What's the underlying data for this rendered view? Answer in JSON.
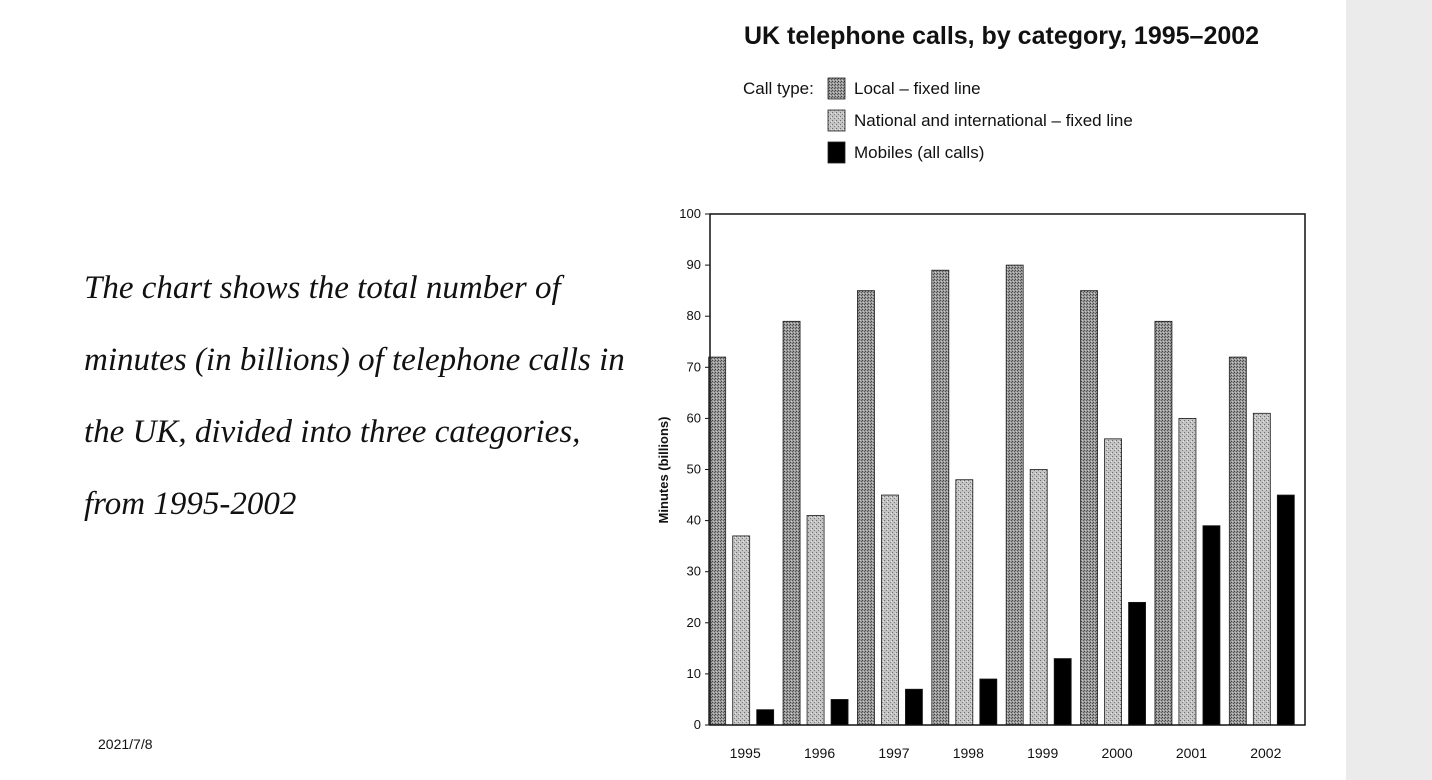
{
  "slide": {
    "description": "The chart shows the total number of minutes (in billions) of telephone calls in the UK, divided into three categories, from 1995-2002",
    "date": "2021/7/8"
  },
  "chart_data": {
    "type": "bar",
    "title": "UK telephone calls, by category, 1995–2002",
    "legend_title": "Call type:",
    "legend_position": "top",
    "xlabel": "",
    "ylabel": "Minutes (billions)",
    "ylim": [
      0,
      100
    ],
    "yticks": [
      0,
      10,
      20,
      30,
      40,
      50,
      60,
      70,
      80,
      90,
      100
    ],
    "grid": false,
    "categories": [
      "1995",
      "1996",
      "1997",
      "1998",
      "1999",
      "2000",
      "2001",
      "2002"
    ],
    "series": [
      {
        "name": "Local – fixed line",
        "color": "#8a8a8a",
        "values": [
          72,
          79,
          85,
          89,
          90,
          85,
          79,
          72
        ]
      },
      {
        "name": "National and international – fixed line",
        "color": "#b5b5b5",
        "values": [
          37,
          41,
          45,
          48,
          50,
          56,
          60,
          61
        ]
      },
      {
        "name": "Mobiles (all calls)",
        "color": "#000000",
        "values": [
          3,
          5,
          7,
          9,
          13,
          24,
          39,
          45
        ]
      }
    ]
  }
}
